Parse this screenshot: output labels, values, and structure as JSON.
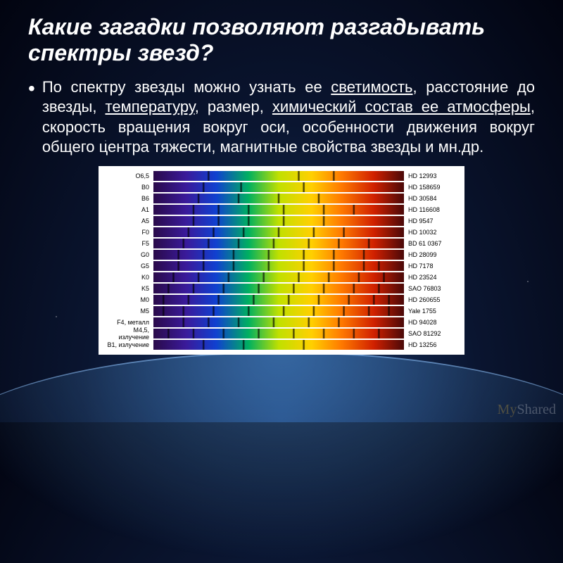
{
  "title": "Какие загадки позволяют разгадывать спектры звезд?",
  "bullet": "•",
  "body": {
    "t1": "По спектру звезды можно узнать ее ",
    "u1": "светимость",
    "t2": ", расстояние до звезды, ",
    "u2": "температуру",
    "t3": ", размер, ",
    "u3": "химический состав ее атмосферы",
    "t4": ", скорость вращения вокруг оси, особенности движения вокруг общего центра тяжести, магнитные свойства звезды и мн.др."
  },
  "chart": {
    "type": "spectral-strips",
    "background": "#ffffff",
    "label_fontsize": 9,
    "label_color": "#000000",
    "strip_height": 14,
    "gradient_stops": [
      "#2a0a4a",
      "#3a1a9a",
      "#1040d0",
      "#00b060",
      "#c0e000",
      "#ffd000",
      "#ff7a00",
      "#d02000",
      "#4a0808"
    ],
    "rows": [
      {
        "left": "O6,5",
        "right": "HD 12993",
        "dark_lines": [
          22,
          58,
          72
        ]
      },
      {
        "left": "B0",
        "right": "HD 158659",
        "dark_lines": [
          20,
          35,
          60
        ]
      },
      {
        "left": "B6",
        "right": "HD 30584",
        "dark_lines": [
          18,
          34,
          50,
          66
        ]
      },
      {
        "left": "A1",
        "right": "HD 116608",
        "dark_lines": [
          16,
          26,
          38,
          52,
          68,
          80
        ]
      },
      {
        "left": "A5",
        "right": "HD 9547",
        "dark_lines": [
          16,
          26,
          38,
          52,
          68
        ]
      },
      {
        "left": "F0",
        "right": "HD 10032",
        "dark_lines": [
          14,
          24,
          36,
          50,
          64,
          76
        ]
      },
      {
        "left": "F5",
        "right": "BD 61 0367",
        "dark_lines": [
          12,
          22,
          34,
          48,
          62,
          74,
          86
        ]
      },
      {
        "left": "G0",
        "right": "HD 28099",
        "dark_lines": [
          10,
          20,
          32,
          46,
          60,
          72,
          84
        ]
      },
      {
        "left": "G5",
        "right": "HD 7178",
        "dark_lines": [
          10,
          20,
          32,
          46,
          60,
          72,
          84,
          90
        ]
      },
      {
        "left": "K0",
        "right": "HD 23524",
        "dark_lines": [
          8,
          18,
          30,
          44,
          58,
          70,
          82,
          92
        ]
      },
      {
        "left": "K5",
        "right": "SAO 76803",
        "dark_lines": [
          6,
          16,
          28,
          42,
          56,
          68,
          80,
          90
        ]
      },
      {
        "left": "M0",
        "right": "HD 260655",
        "dark_lines": [
          4,
          14,
          26,
          40,
          54,
          66,
          78,
          88,
          94
        ]
      },
      {
        "left": "M5",
        "right": "Yale 1755",
        "dark_lines": [
          4,
          12,
          24,
          38,
          52,
          64,
          76,
          86,
          94
        ]
      },
      {
        "left": "F4, металл",
        "right": "HD 94028",
        "dark_lines": [
          12,
          22,
          34,
          48,
          62,
          74
        ]
      },
      {
        "left": "M4,5, излучение",
        "right": "SAO 81292",
        "dark_lines": [
          6,
          16,
          28,
          42,
          56,
          68,
          80,
          90
        ]
      },
      {
        "left": "B1, излучение",
        "right": "HD 13256",
        "dark_lines": [
          20,
          36,
          60
        ]
      }
    ]
  },
  "watermark": {
    "my": "My",
    "shared": "Shared"
  },
  "colors": {
    "bullet": "#b0c8ff",
    "text": "#ffffff"
  }
}
